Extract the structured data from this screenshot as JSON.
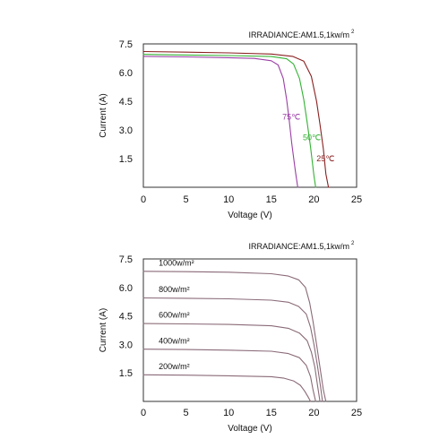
{
  "chart_data": [
    {
      "type": "line",
      "title": "IRRADIANCE:AM1.5,1kw/m",
      "title_superscript": "2",
      "xlabel": "Voltage (V)",
      "ylabel": "Current (A)",
      "xlim": [
        0,
        25
      ],
      "ylim": [
        0,
        7.5
      ],
      "x_ticks": [
        "0",
        "5",
        "10",
        "15",
        "20",
        "25"
      ],
      "y_ticks": [
        "7.5",
        "6.0",
        "4.5",
        "3.0",
        "1.5"
      ],
      "grid": false,
      "series": [
        {
          "name": "75℃",
          "color": "#9b3fa6",
          "x": [
            0,
            5,
            10,
            13,
            15,
            15.8,
            16.4,
            16.8,
            17.1,
            17.4,
            17.8,
            18.1
          ],
          "y": [
            6.85,
            6.82,
            6.78,
            6.74,
            6.62,
            6.4,
            5.7,
            4.6,
            3.5,
            2.3,
            0.9,
            0
          ]
        },
        {
          "name": "50℃",
          "color": "#33b233",
          "x": [
            0,
            5,
            10,
            15,
            16.8,
            17.6,
            18.3,
            18.8,
            19.2,
            19.6,
            20.0,
            20.2
          ],
          "y": [
            6.95,
            6.92,
            6.89,
            6.84,
            6.72,
            6.45,
            5.7,
            4.6,
            3.4,
            2.1,
            0.6,
            0
          ]
        },
        {
          "name": "25℃",
          "color": "#8a2020",
          "x": [
            0,
            5,
            10,
            15,
            17.5,
            18.8,
            19.7,
            20.3,
            20.7,
            21.1,
            21.4,
            21.7
          ],
          "y": [
            7.1,
            7.07,
            7.03,
            6.97,
            6.85,
            6.6,
            5.8,
            4.5,
            3.3,
            2.0,
            0.7,
            0
          ]
        }
      ]
    },
    {
      "type": "line",
      "title": "IRRADIANCE:AM1.5,1kw/m",
      "title_superscript": "2",
      "xlabel": "Voltage (V)",
      "ylabel": "Current (A)",
      "xlim": [
        0,
        25
      ],
      "ylim": [
        0,
        7.5
      ],
      "x_ticks": [
        "0",
        "5",
        "10",
        "15",
        "20",
        "25"
      ],
      "y_ticks": [
        "7.5",
        "6.0",
        "4.5",
        "3.0",
        "1.5"
      ],
      "grid": false,
      "series": [
        {
          "name": "1000w/m²",
          "color": "#8a6a78",
          "x": [
            0,
            5,
            10,
            15,
            17,
            18.2,
            19,
            19.5,
            19.9,
            20.3,
            20.7,
            21.1,
            21.4
          ],
          "y": [
            6.85,
            6.83,
            6.8,
            6.72,
            6.6,
            6.4,
            6.0,
            5.2,
            4.2,
            3.0,
            1.8,
            0.6,
            0
          ]
        },
        {
          "name": "800w/m²",
          "color": "#8a6a78",
          "x": [
            0,
            5,
            10,
            15,
            17,
            18.2,
            19.1,
            19.6,
            20.0,
            20.4,
            20.8,
            21.0
          ],
          "y": [
            5.45,
            5.43,
            5.4,
            5.33,
            5.22,
            5.0,
            4.6,
            3.9,
            3.0,
            1.9,
            0.7,
            0
          ]
        },
        {
          "name": "600w/m²",
          "color": "#8a6a78",
          "x": [
            0,
            5,
            10,
            15,
            17,
            18.3,
            19.2,
            19.7,
            20.1,
            20.4,
            20.7
          ],
          "y": [
            4.1,
            4.08,
            4.05,
            3.98,
            3.85,
            3.6,
            3.2,
            2.6,
            1.8,
            0.9,
            0
          ]
        },
        {
          "name": "400w/m²",
          "color": "#8a6a78",
          "x": [
            0,
            5,
            10,
            15,
            17,
            18.3,
            19.1,
            19.6,
            19.9,
            20.2
          ],
          "y": [
            2.75,
            2.73,
            2.7,
            2.64,
            2.52,
            2.3,
            1.9,
            1.3,
            0.6,
            0
          ]
        },
        {
          "name": "200w/m²",
          "color": "#8a6a78",
          "x": [
            0,
            5,
            10,
            15,
            16.5,
            17.6,
            18.4,
            18.9,
            19.3,
            19.6
          ],
          "y": [
            1.4,
            1.38,
            1.35,
            1.3,
            1.22,
            1.08,
            0.85,
            0.55,
            0.25,
            0
          ]
        }
      ]
    }
  ]
}
